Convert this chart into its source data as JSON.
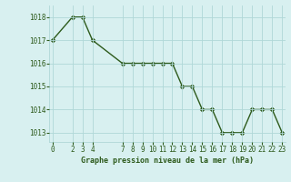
{
  "x": [
    0,
    2,
    3,
    4,
    7,
    8,
    9,
    10,
    11,
    12,
    13,
    14,
    15,
    16,
    17,
    18,
    19,
    20,
    21,
    22,
    23
  ],
  "y": [
    1017,
    1018,
    1018,
    1017,
    1016,
    1016,
    1016,
    1016,
    1016,
    1016,
    1015,
    1015,
    1014,
    1014,
    1013,
    1013,
    1013,
    1014,
    1014,
    1014,
    1013
  ],
  "line_color": "#2d5a1b",
  "marker_color": "#2d5a1b",
  "bg_color": "#d8f0f0",
  "grid_color": "#b0d8d8",
  "xlabel": "Graphe pression niveau de la mer (hPa)",
  "xlabel_color": "#2d5a1b",
  "yticks": [
    1013,
    1014,
    1015,
    1016,
    1017,
    1018
  ],
  "xticks": [
    0,
    2,
    3,
    4,
    7,
    8,
    9,
    10,
    11,
    12,
    13,
    14,
    15,
    16,
    17,
    18,
    19,
    20,
    21,
    22,
    23
  ],
  "xlim": [
    -0.3,
    23.3
  ],
  "ylim": [
    1012.6,
    1018.5
  ],
  "tick_label_color": "#2d5a1b",
  "tick_label_fontsize": 5.5,
  "xlabel_fontsize": 6.0,
  "linewidth": 1.0,
  "markersize": 2.8
}
